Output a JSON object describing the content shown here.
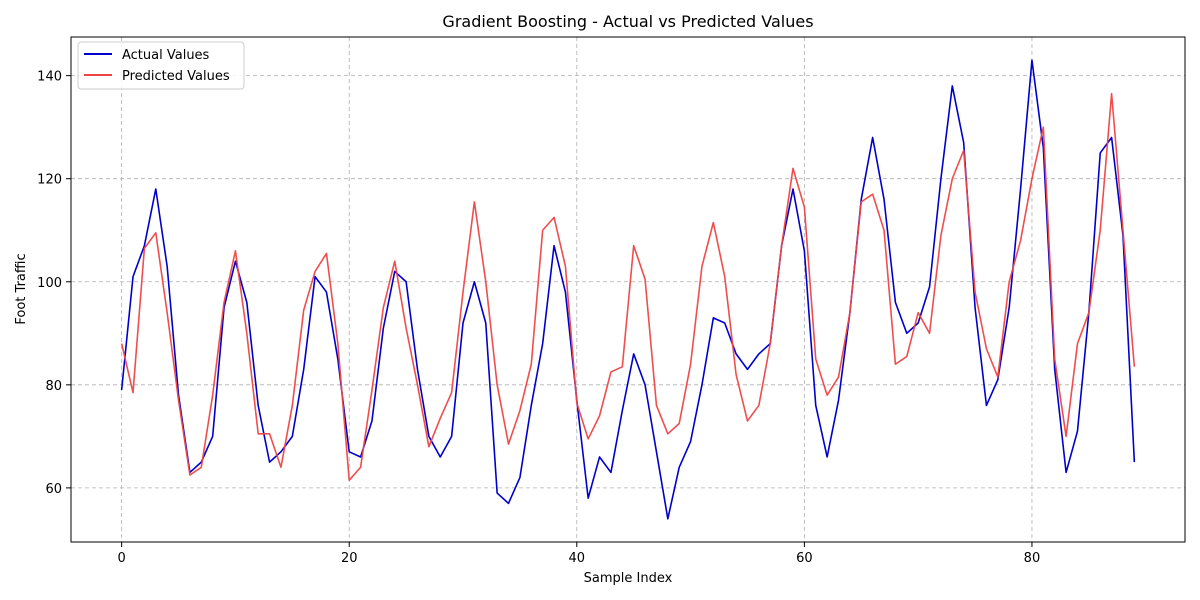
{
  "chart_data": {
    "type": "line",
    "title": "Gradient Boosting - Actual vs Predicted Values",
    "xlabel": "Sample Index",
    "ylabel": "Foot Traffic",
    "xlim": [
      -4.45,
      93.45
    ],
    "ylim": [
      49.5,
      147.5
    ],
    "xticks": [
      0,
      20,
      40,
      60,
      80
    ],
    "yticks": [
      60,
      80,
      100,
      120,
      140
    ],
    "grid": true,
    "legend_position": "top-left",
    "series": [
      {
        "name": "Actual Values",
        "color": "#0000cc",
        "values": [
          79,
          101,
          107,
          118,
          103,
          78,
          63,
          65,
          70,
          95,
          104,
          96,
          76,
          65,
          67,
          70,
          83,
          101,
          98,
          85,
          67,
          66,
          73,
          91,
          102,
          100,
          83,
          70,
          66,
          70,
          92,
          100,
          92,
          59,
          57,
          62,
          76,
          88,
          107,
          98,
          77,
          58,
          66,
          63,
          75,
          86,
          80,
          67,
          54,
          64,
          69,
          80,
          93,
          92,
          86,
          83,
          86,
          88,
          107,
          118,
          106,
          76,
          66,
          77,
          94,
          116,
          128,
          116,
          96,
          90,
          92,
          99,
          120,
          138,
          127,
          95,
          76,
          81,
          95,
          118,
          143,
          126,
          83,
          63,
          71,
          94,
          125,
          128,
          109,
          65
        ]
      },
      {
        "name": "Predicted Values",
        "color": "#ee4444",
        "values": [
          88,
          78.5,
          106.5,
          109.5,
          94,
          77,
          62.5,
          64,
          78,
          96,
          106,
          90,
          70.5,
          70.5,
          64,
          76,
          94.5,
          102,
          105.5,
          88,
          61.5,
          64,
          79,
          95,
          104,
          91,
          80,
          68,
          73.5,
          78.5,
          98,
          115.5,
          100,
          80,
          68.5,
          75,
          84,
          110,
          112.5,
          103,
          76.5,
          69.5,
          74,
          82.5,
          83.5,
          107,
          100.5,
          76,
          70.5,
          72.5,
          84,
          103,
          111.5,
          101,
          82,
          73,
          76,
          88,
          107,
          122,
          114.5,
          85,
          78,
          81.5,
          94,
          115.5,
          117,
          110,
          84,
          85.5,
          94,
          90,
          109,
          120,
          125.5,
          98,
          87,
          81.5,
          100,
          108,
          120,
          130,
          85,
          70,
          88,
          94,
          110,
          136.5,
          110,
          83.5
        ]
      }
    ]
  }
}
